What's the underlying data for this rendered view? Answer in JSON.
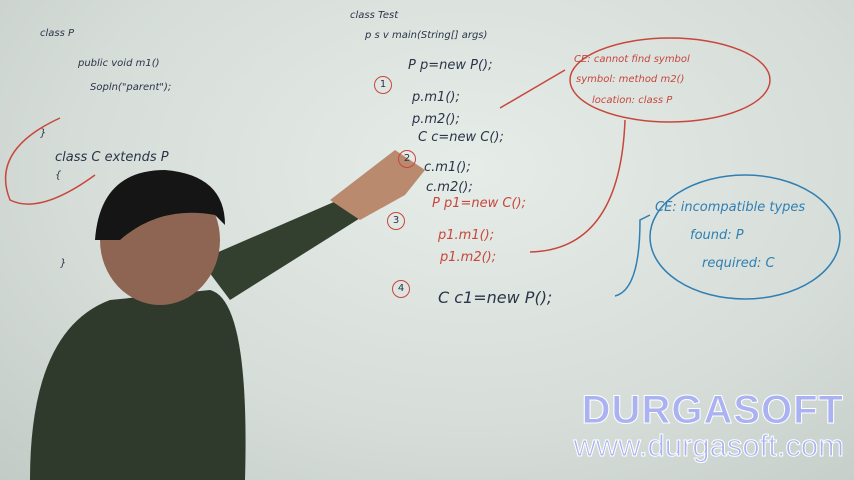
{
  "whiteboard": {
    "left_code": [
      "class P",
      "public void m1()",
      "Sopln(\"parent\");",
      "}",
      "class C extends P",
      "{",
      "}"
    ],
    "main_header": [
      "class Test",
      "p s v main(String[] args)"
    ],
    "steps": [
      {
        "number": "1",
        "lines": [
          "P p=new P();",
          "p.m1();",
          "p.m2();"
        ]
      },
      {
        "number": "2",
        "lines": [
          "C c=new C();",
          "c.m1();",
          "c.m2();"
        ]
      },
      {
        "number": "3",
        "lines": [
          "P p1=new C();",
          "p1.m1();",
          "p1.m2();"
        ]
      },
      {
        "number": "4",
        "lines": [
          "C c1=new P();"
        ]
      }
    ],
    "error_1": [
      "CE: cannot find symbol",
      "symbol: method m2()",
      "location: class P"
    ],
    "error_2": [
      "CE: incompatible types",
      "found: P",
      "required: C"
    ]
  },
  "watermark": {
    "brand": "DURGASOFT",
    "url": "www.durgasoft.com"
  }
}
